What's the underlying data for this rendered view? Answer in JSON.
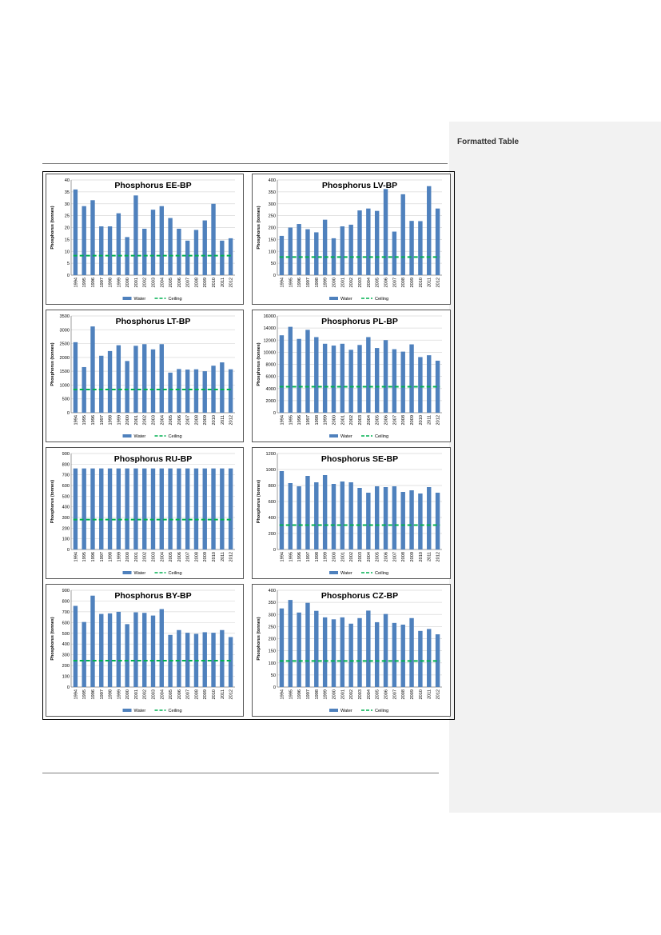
{
  "page": {
    "sidebar_label": "Formatted Table"
  },
  "chart_data": [
    {
      "type": "bar",
      "title": "Phosphorus EE-BP",
      "ylabel": "Phosphorus (tonnes)",
      "categories": [
        "1994",
        "1995",
        "1996",
        "1997",
        "1998",
        "1999",
        "2000",
        "2001",
        "2002",
        "2003",
        "2004",
        "2005",
        "2006",
        "2007",
        "2008",
        "2009",
        "2010",
        "2011",
        "2012"
      ],
      "ylim": [
        0,
        40
      ],
      "yticks": [
        0,
        5,
        10,
        15,
        20,
        25,
        30,
        35,
        40
      ],
      "series": [
        {
          "name": "Water",
          "values": [
            36,
            29,
            31.5,
            20.5,
            20.5,
            26,
            16,
            33.5,
            19.5,
            27.5,
            29,
            24,
            19.5,
            14.5,
            19,
            23,
            30,
            14.5,
            15.5
          ]
        },
        {
          "name": "Ceiling",
          "line": 8.2
        }
      ],
      "legend": "bottom",
      "grid": true
    },
    {
      "type": "bar",
      "title": "Phosphorus LV-BP",
      "ylabel": "Phosphorus (tonnes)",
      "categories": [
        "1994",
        "1995",
        "1996",
        "1997",
        "1998",
        "1999",
        "2000",
        "2001",
        "2002",
        "2003",
        "2004",
        "2005",
        "2006",
        "2007",
        "2008",
        "2009",
        "2010",
        "2011",
        "2012"
      ],
      "ylim": [
        0,
        400
      ],
      "yticks": [
        0,
        50,
        100,
        150,
        200,
        250,
        300,
        350,
        400
      ],
      "series": [
        {
          "name": "Water",
          "values": [
            165,
            200,
            215,
            193,
            180,
            233,
            155,
            205,
            212,
            272,
            280,
            270,
            362,
            183,
            340,
            228,
            227,
            374,
            280
          ]
        },
        {
          "name": "Ceiling",
          "line": 76
        }
      ],
      "legend": "bottom",
      "grid": true
    },
    {
      "type": "bar",
      "title": "Phosphorus LT-BP",
      "ylabel": "Phosphorus (tonnes)",
      "categories": [
        "1994",
        "1995",
        "1996",
        "1997",
        "1998",
        "1999",
        "2000",
        "2001",
        "2002",
        "2003",
        "2004",
        "2005",
        "2006",
        "2007",
        "2008",
        "2009",
        "2010",
        "2011",
        "2012"
      ],
      "ylim": [
        0,
        3500
      ],
      "yticks": [
        0,
        500,
        1000,
        1500,
        2000,
        2500,
        3000,
        3500
      ],
      "series": [
        {
          "name": "Water",
          "values": [
            2550,
            1650,
            3120,
            2060,
            2230,
            2440,
            1870,
            2420,
            2480,
            2290,
            2480,
            1450,
            1580,
            1560,
            1570,
            1500,
            1700,
            1820,
            1570
          ]
        },
        {
          "name": "Ceiling",
          "line": 840
        }
      ],
      "legend": "bottom",
      "grid": true
    },
    {
      "type": "bar",
      "title": "Phosphorus PL-BP",
      "ylabel": "Phosphorus (tonnes)",
      "categories": [
        "1994",
        "1995",
        "1996",
        "1997",
        "1998",
        "1999",
        "2000",
        "2001",
        "2002",
        "2003",
        "2004",
        "2005",
        "2006",
        "2007",
        "2008",
        "2009",
        "2010",
        "2011",
        "2012"
      ],
      "ylim": [
        0,
        16000
      ],
      "yticks": [
        0,
        2000,
        4000,
        6000,
        8000,
        10000,
        12000,
        14000,
        16000
      ],
      "series": [
        {
          "name": "Water",
          "values": [
            12800,
            14200,
            12200,
            13700,
            12500,
            11400,
            11100,
            11400,
            10400,
            11200,
            12500,
            10700,
            12000,
            10500,
            10100,
            11300,
            9200,
            9500,
            8600
          ]
        },
        {
          "name": "Ceiling",
          "line": 4300
        }
      ],
      "legend": "bottom",
      "grid": true
    },
    {
      "type": "bar",
      "title": "Phosphorus RU-BP",
      "ylabel": "Phosphorus (tonnes)",
      "categories": [
        "1994",
        "1995",
        "1996",
        "1997",
        "1998",
        "1999",
        "2000",
        "2001",
        "2002",
        "2003",
        "2004",
        "2005",
        "2006",
        "2007",
        "2008",
        "2009",
        "2010",
        "2011",
        "2012"
      ],
      "ylim": [
        0,
        900
      ],
      "yticks": [
        0,
        100,
        200,
        300,
        400,
        500,
        600,
        700,
        800,
        900
      ],
      "series": [
        {
          "name": "Water",
          "values": [
            760,
            760,
            760,
            760,
            760,
            760,
            760,
            760,
            760,
            760,
            760,
            760,
            760,
            760,
            760,
            760,
            760,
            760,
            760
          ]
        },
        {
          "name": "Ceiling",
          "line": 280
        }
      ],
      "legend": "bottom",
      "grid": true
    },
    {
      "type": "bar",
      "title": "Phosphorus SE-BP",
      "ylabel": "Phosphorus (tonnes)",
      "categories": [
        "1994",
        "1995",
        "1996",
        "1997",
        "1998",
        "1999",
        "2000",
        "2001",
        "2002",
        "2003",
        "2004",
        "2005",
        "2006",
        "2007",
        "2008",
        "2009",
        "2010",
        "2011",
        "2012"
      ],
      "ylim": [
        0,
        1200
      ],
      "yticks": [
        0,
        200,
        400,
        600,
        800,
        1000,
        1200
      ],
      "series": [
        {
          "name": "Water",
          "values": [
            980,
            830,
            790,
            920,
            840,
            930,
            820,
            850,
            840,
            770,
            710,
            790,
            780,
            790,
            720,
            740,
            700,
            780,
            710
          ]
        },
        {
          "name": "Ceiling",
          "line": 305
        }
      ],
      "legend": "bottom",
      "grid": true
    },
    {
      "type": "bar",
      "title": "Phosphorus BY-BP",
      "ylabel": "Phosphorus (tonnes)",
      "categories": [
        "1994",
        "1995",
        "1996",
        "1997",
        "1998",
        "1999",
        "2000",
        "2001",
        "2002",
        "2003",
        "2004",
        "2005",
        "2006",
        "2007",
        "2008",
        "2009",
        "2010",
        "2011",
        "2012"
      ],
      "ylim": [
        0,
        900
      ],
      "yticks": [
        0,
        100,
        200,
        300,
        400,
        500,
        600,
        700,
        800,
        900
      ],
      "series": [
        {
          "name": "Water",
          "values": [
            755,
            605,
            850,
            680,
            685,
            700,
            585,
            695,
            690,
            665,
            725,
            485,
            530,
            505,
            495,
            510,
            505,
            530,
            465
          ]
        },
        {
          "name": "Ceiling",
          "line": 245
        }
      ],
      "legend": "bottom",
      "grid": true
    },
    {
      "type": "bar",
      "title": "Phosphorus CZ-BP",
      "ylabel": "Phosphorus (tonnes)",
      "categories": [
        "1994",
        "1995",
        "1996",
        "1997",
        "1998",
        "1999",
        "2000",
        "2001",
        "2002",
        "2003",
        "2004",
        "2005",
        "2006",
        "2007",
        "2008",
        "2009",
        "2010",
        "2011",
        "2012"
      ],
      "ylim": [
        0,
        400
      ],
      "yticks": [
        0,
        50,
        100,
        150,
        200,
        250,
        300,
        350,
        400
      ],
      "series": [
        {
          "name": "Water",
          "values": [
            325,
            360,
            308,
            348,
            315,
            288,
            280,
            288,
            262,
            285,
            316,
            268,
            302,
            265,
            258,
            285,
            232,
            240,
            218
          ]
        },
        {
          "name": "Ceiling",
          "line": 108
        }
      ],
      "legend": "bottom",
      "grid": true
    }
  ],
  "colors": {
    "bar": "#4f81bd",
    "ceiling": "#00b050",
    "grid": "#d9d9d9",
    "axis": "#868686"
  }
}
